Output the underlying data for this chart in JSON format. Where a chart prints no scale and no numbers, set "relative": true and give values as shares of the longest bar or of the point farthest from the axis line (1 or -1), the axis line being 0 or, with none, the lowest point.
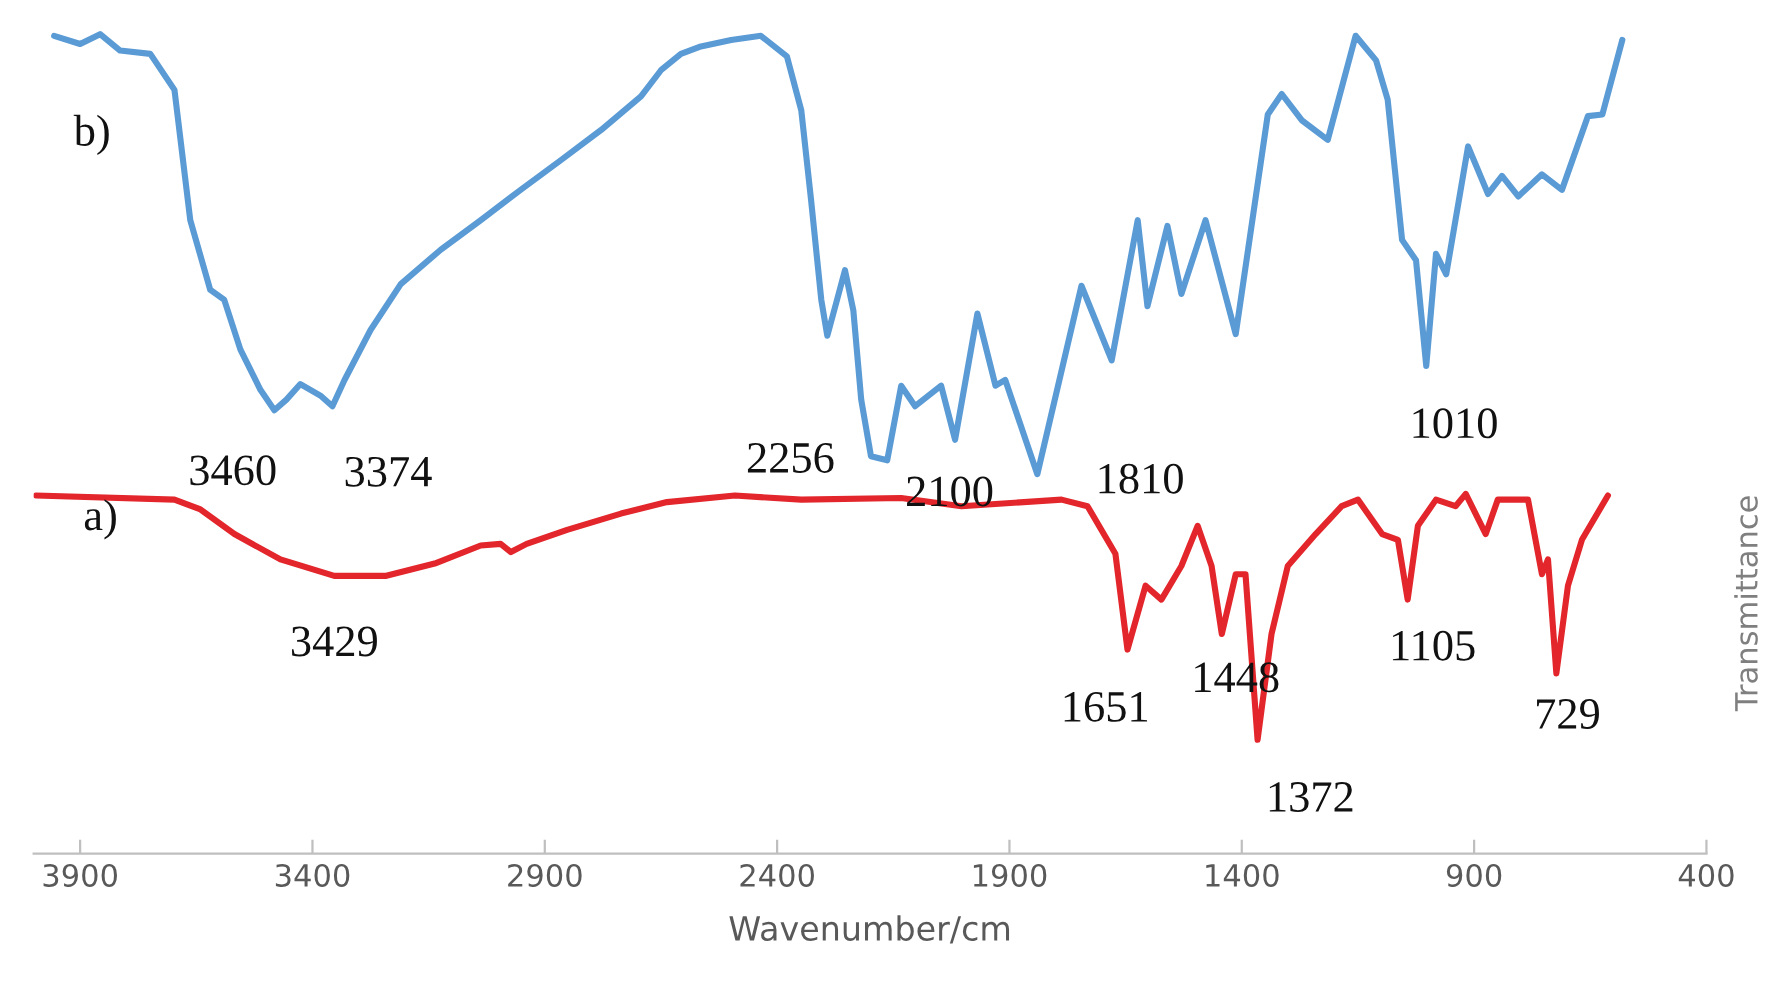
{
  "chart_data": {
    "type": "line",
    "xlabel": "Wavenumber/cm",
    "ylabel": "Transmittance",
    "relative": true,
    "grid": false,
    "xlim": [
      4000,
      400
    ],
    "xticks": [
      3900,
      3400,
      2900,
      2400,
      1900,
      1400,
      900,
      400
    ],
    "series": [
      {
        "color": "#5b9bd5",
        "x": [
          3956,
          3900,
          3857,
          3814,
          3749,
          3697,
          3663,
          3620,
          3590,
          3555,
          3512,
          3482,
          3456,
          3426,
          3383,
          3357,
          3331,
          3275,
          3210,
          3124,
          3038,
          2952,
          2866,
          2779,
          2693,
          2650,
          2607,
          2564,
          2499,
          2435,
          2379,
          2348,
          2327,
          2305,
          2292,
          2271,
          2254,
          2236,
          2219,
          2198,
          2163,
          2133,
          2103,
          2047,
          2017,
          1969,
          1930,
          1909,
          1840,
          1745,
          1680,
          1624,
          1603,
          1560,
          1530,
          1478,
          1413,
          1344,
          1314,
          1271,
          1215,
          1155,
          1111,
          1086,
          1055,
          1025,
          1003,
          982,
          960,
          913,
          870,
          840,
          805,
          754,
          711,
          655,
          624,
          581
        ],
        "values": [
          0.998,
          0.988,
          1.0,
          0.98,
          0.976,
          0.932,
          0.773,
          0.688,
          0.676,
          0.615,
          0.566,
          0.541,
          0.554,
          0.573,
          0.559,
          0.546,
          0.578,
          0.639,
          0.695,
          0.737,
          0.773,
          0.81,
          0.846,
          0.883,
          0.924,
          0.956,
          0.976,
          0.985,
          0.993,
          0.998,
          0.973,
          0.907,
          0.798,
          0.676,
          0.632,
          0.676,
          0.712,
          0.663,
          0.554,
          0.485,
          0.48,
          0.571,
          0.546,
          0.571,
          0.505,
          0.659,
          0.571,
          0.578,
          0.463,
          0.693,
          0.602,
          0.773,
          0.668,
          0.766,
          0.683,
          0.773,
          0.634,
          0.902,
          0.927,
          0.895,
          0.871,
          0.998,
          0.968,
          0.92,
          0.749,
          0.724,
          0.595,
          0.732,
          0.707,
          0.863,
          0.805,
          0.827,
          0.802,
          0.829,
          0.81,
          0.9,
          0.902,
          0.993
        ]
      },
      {
        "color": "#e3262b",
        "x": [
          3995,
          3697,
          3641,
          3568,
          3469,
          3353,
          3241,
          3137,
          3038,
          2995,
          2973,
          2939,
          2852,
          2736,
          2637,
          2491,
          2348,
          2133,
          2003,
          1788,
          1732,
          1672,
          1646,
          1607,
          1573,
          1530,
          1495,
          1465,
          1443,
          1413,
          1392,
          1366,
          1336,
          1301,
          1241,
          1185,
          1150,
          1098,
          1064,
          1043,
          1021,
          982,
          940,
          918,
          875,
          849,
          784,
          754,
          741,
          723,
          698,
          668,
          612
        ],
        "values": [
          0.437,
          0.432,
          0.42,
          0.39,
          0.359,
          0.339,
          0.339,
          0.354,
          0.376,
          0.378,
          0.368,
          0.378,
          0.395,
          0.415,
          0.429,
          0.437,
          0.432,
          0.434,
          0.424,
          0.432,
          0.424,
          0.366,
          0.249,
          0.327,
          0.31,
          0.351,
          0.4,
          0.351,
          0.268,
          0.341,
          0.341,
          0.139,
          0.268,
          0.351,
          0.39,
          0.424,
          0.432,
          0.39,
          0.383,
          0.31,
          0.4,
          0.432,
          0.424,
          0.439,
          0.39,
          0.432,
          0.432,
          0.341,
          0.359,
          0.22,
          0.327,
          0.383,
          0.437
        ]
      }
    ],
    "annotations": [
      "b)",
      "a)",
      {
        "text": "3460",
        "x": 3482,
        "y": 0.541
      },
      {
        "text": "3374",
        "x": 3357,
        "y": 0.546
      },
      {
        "text": "2256",
        "x": 2198,
        "y": 0.485
      },
      {
        "text": "2100",
        "x": 2017,
        "y": 0.505
      },
      {
        "text": "1810",
        "x": 1840,
        "y": 0.463
      },
      {
        "text": "1010",
        "x": 1003,
        "y": 0.595
      },
      {
        "text": "3429",
        "x": 3353,
        "y": 0.339
      },
      {
        "text": "1651",
        "x": 1646,
        "y": 0.249
      },
      {
        "text": "1448",
        "x": 1443,
        "y": 0.268
      },
      {
        "text": "1372",
        "x": 1366,
        "y": 0.139
      },
      {
        "text": "1105",
        "x": 1043,
        "y": 0.31
      },
      {
        "text": "729",
        "x": 723,
        "y": 0.22
      }
    ]
  }
}
